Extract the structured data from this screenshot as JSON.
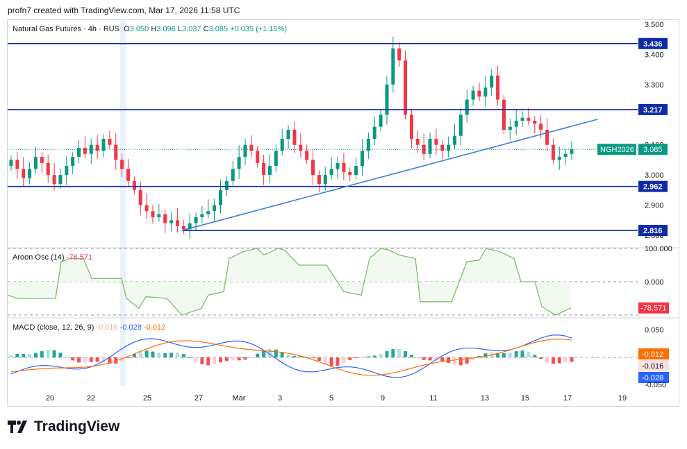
{
  "header": {
    "credit": "profn7 created with TradingView.com, Mar 17, 2026 11:58 UTC"
  },
  "legend": {
    "title": "Natural Gas Futures · 4h · RUS",
    "o_label": "O",
    "o": "3.050",
    "h_label": "H",
    "h": "3.096",
    "l_label": "L",
    "l": "3.037",
    "c_label": "C",
    "c": "3.085",
    "change": "+0.035 (+1.15%)"
  },
  "aroon": {
    "label": "Aroon Osc (14)",
    "value": "-78.571",
    "axis": [
      "100.000",
      "0.000",
      "-78.571"
    ]
  },
  "macd": {
    "label": "MACD (close, 12, 26, 9)",
    "hist": "-0.016",
    "macd": "-0.028",
    "signal": "-0.012",
    "axis": [
      "0.050",
      "-0.012",
      "-0.016",
      "-0.028",
      "-0.050"
    ]
  },
  "price_axis": [
    "3.500",
    "3.400",
    "3.300",
    "3.100",
    "3.000",
    "2.900",
    "2.800"
  ],
  "levels": [
    {
      "value": 3.436,
      "label": "3.436"
    },
    {
      "value": 3.217,
      "label": "3.217"
    },
    {
      "value": 2.962,
      "label": "2.962"
    },
    {
      "value": 2.816,
      "label": "2.816"
    }
  ],
  "symbol_tag": {
    "name": "NGH2026",
    "value": "3.085"
  },
  "x_axis": [
    "20",
    "22",
    "25",
    "27",
    "Mar",
    "3",
    "5",
    "9",
    "11",
    "13",
    "15",
    "17",
    "19"
  ],
  "colors": {
    "up": "#089981",
    "down": "#f23645",
    "level": "#0d2aa8",
    "trend": "#3a7be0"
  },
  "brand": "TradingView",
  "chart_data": {
    "type": "candlestick",
    "title": "Natural Gas Futures · 4h · RUS",
    "ylim": [
      2.8,
      3.5
    ],
    "trendline": [
      [
        2.816,
        "Feb 26"
      ],
      [
        3.19,
        "Mar 18"
      ]
    ],
    "closes": [
      3.05,
      3.02,
      2.99,
      3.02,
      3.06,
      3.04,
      3.0,
      2.97,
      3.0,
      3.03,
      3.06,
      3.09,
      3.07,
      3.1,
      3.08,
      3.12,
      3.1,
      3.05,
      3.02,
      2.98,
      2.95,
      2.9,
      2.88,
      2.86,
      2.87,
      2.84,
      2.85,
      2.83,
      2.82,
      2.84,
      2.86,
      2.87,
      2.88,
      2.9,
      2.95,
      2.98,
      3.02,
      3.06,
      3.1,
      3.08,
      3.04,
      3.0,
      3.03,
      3.08,
      3.12,
      3.15,
      3.1,
      3.08,
      3.05,
      3.0,
      2.97,
      3.0,
      3.02,
      3.04,
      3.01,
      3.0,
      3.03,
      3.08,
      3.12,
      3.16,
      3.2,
      3.3,
      3.42,
      3.38,
      3.2,
      3.12,
      3.1,
      3.07,
      3.12,
      3.1,
      3.08,
      3.1,
      3.13,
      3.2,
      3.25,
      3.28,
      3.26,
      3.29,
      3.33,
      3.25,
      3.15,
      3.16,
      3.18,
      3.19,
      3.18,
      3.17,
      3.15,
      3.1,
      3.05,
      3.06,
      3.07,
      3.085
    ]
  }
}
